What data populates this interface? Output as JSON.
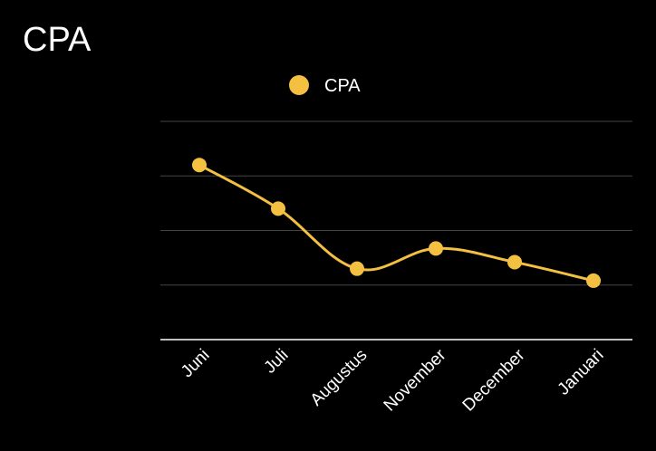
{
  "widget": {
    "title": "CPA"
  },
  "chart_data": {
    "type": "line",
    "title": "CPA",
    "categories": [
      "Juni",
      "Juli",
      "Augustus",
      "November",
      "December",
      "Januari"
    ],
    "series": [
      {
        "name": "CPA",
        "values": [
          3.2,
          2.4,
          1.3,
          1.67,
          1.42,
          1.08
        ],
        "color": "#f4c042"
      }
    ],
    "ylim": [
      0,
      4
    ],
    "xlabel": "",
    "ylabel": "",
    "grid": true,
    "y_tick_labels_shown": false,
    "legend_position": "top",
    "smooth": true,
    "gridline_color": "#444444",
    "axis_color": "#ffffff"
  }
}
